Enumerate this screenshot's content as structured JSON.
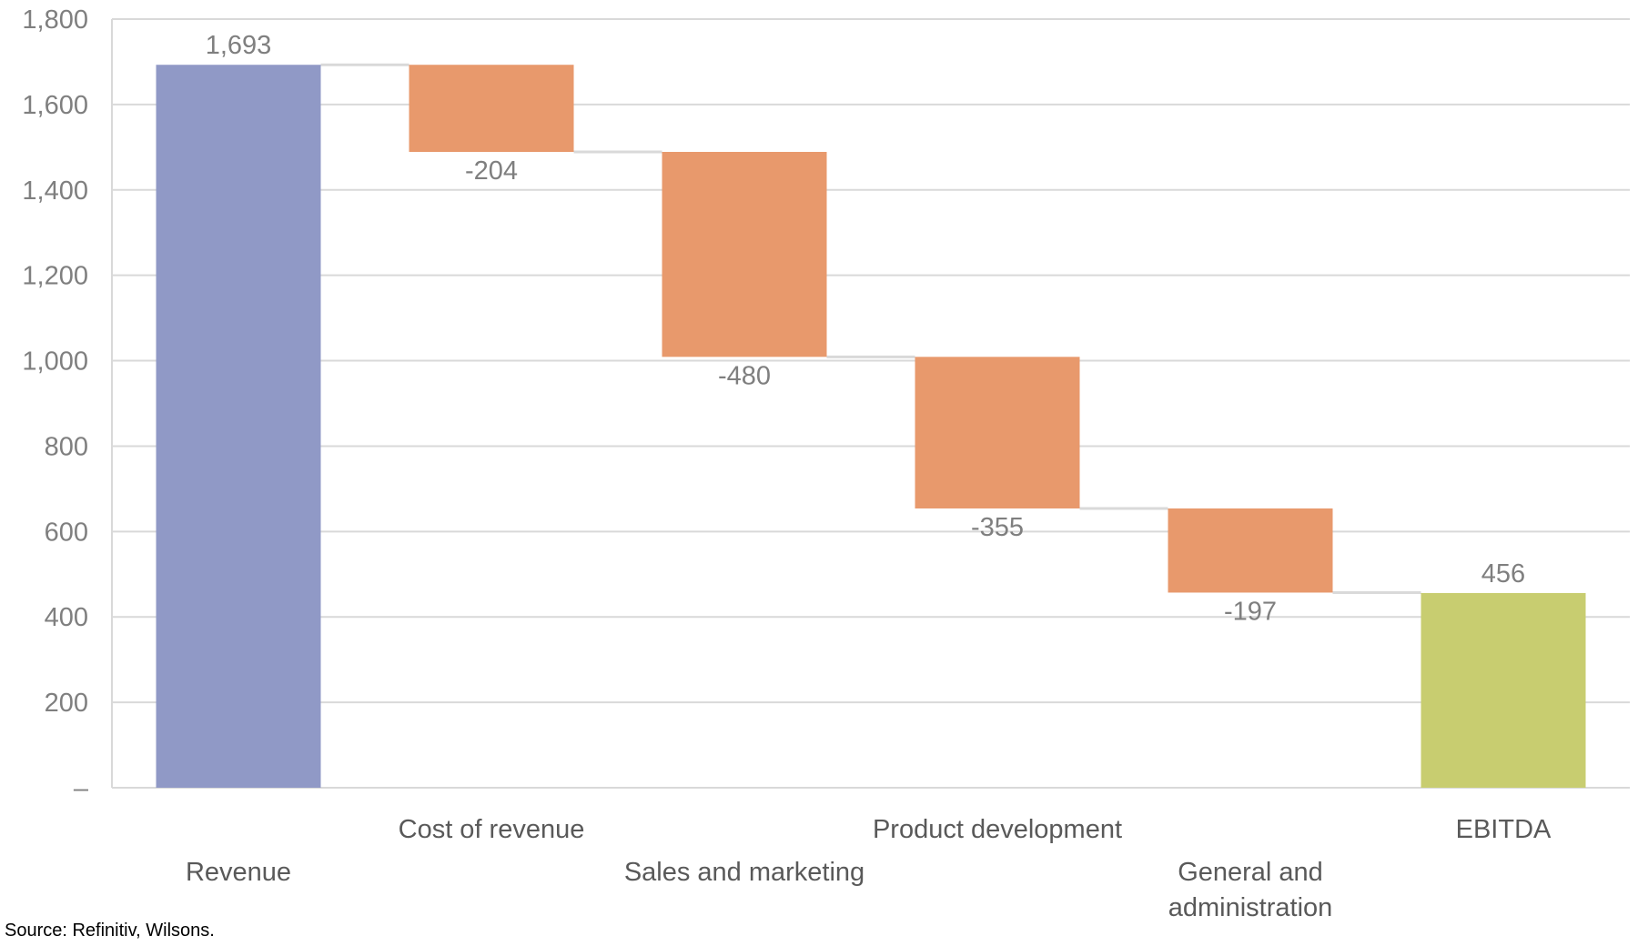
{
  "chart_data": {
    "type": "waterfall",
    "categories": [
      "Revenue",
      "Cost of revenue",
      "Sales and marketing",
      "Product development",
      "General and administration",
      "EBITDA"
    ],
    "category_lines": [
      [
        "Revenue"
      ],
      [
        "Cost of revenue"
      ],
      [
        "Sales and marketing"
      ],
      [
        "Product development"
      ],
      [
        "General and",
        "administration"
      ],
      [
        "EBITDA"
      ]
    ],
    "values": [
      1693,
      -204,
      -480,
      -355,
      -197,
      456
    ],
    "kinds": [
      "total",
      "delta",
      "delta",
      "delta",
      "delta",
      "total"
    ],
    "data_labels": [
      "1,693",
      "-204",
      "-480",
      "-355",
      "-197",
      "456"
    ],
    "ylim": [
      0,
      1800
    ],
    "yticks": [
      0,
      200,
      400,
      600,
      800,
      1000,
      1200,
      1400,
      1600,
      1800
    ],
    "ytick_labels": [
      "–",
      "200",
      "400",
      "600",
      "800",
      "1,000",
      "1,200",
      "1,400",
      "1,600",
      "1,800"
    ],
    "grid": true,
    "colors": {
      "start": "#9099c6",
      "decrease": "#e8996c",
      "end": "#c8cd70",
      "grid": "#d9d9d9",
      "connector": "#d9d9d9"
    }
  },
  "source": "Source: Refinitiv, Wilsons."
}
